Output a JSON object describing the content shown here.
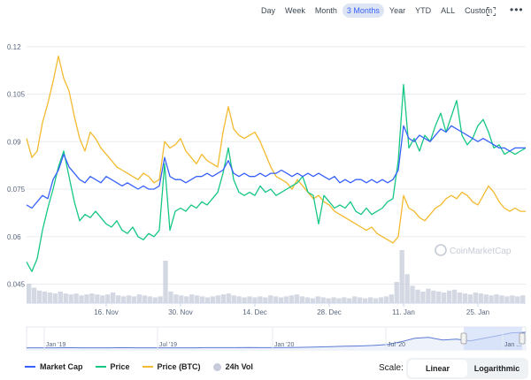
{
  "range_buttons": [
    "Day",
    "Week",
    "Month",
    "3 Months",
    "Year",
    "YTD",
    "ALL",
    "Custom"
  ],
  "active_range": "3 Months",
  "watermark": "CoinMarketCap",
  "legend": [
    {
      "label": "Market Cap",
      "color": "#3861fb",
      "kind": "line"
    },
    {
      "label": "Price",
      "color": "#16c784",
      "kind": "line"
    },
    {
      "label": "Price (BTC)",
      "color": "#f3ba2f",
      "kind": "line"
    },
    {
      "label": "24h Vol",
      "color": "#c5cbd9",
      "kind": "dot"
    }
  ],
  "scale": {
    "label": "Scale:",
    "options": [
      "Linear",
      "Logarithmic"
    ],
    "active": "Linear"
  },
  "colors": {
    "market_cap": "#3861fb",
    "price": "#16c784",
    "price_btc": "#f3ba2f",
    "volume": "#c5cbd9",
    "navigator_fill": "#c9d7f8"
  },
  "chart_data": {
    "type": "line",
    "y_ticks": [
      0.045,
      0.06,
      0.075,
      0.09,
      0.105,
      0.12
    ],
    "ylim": [
      0.039,
      0.123
    ],
    "x_ticks": [
      "16. Nov",
      "30. Nov",
      "14. Dec",
      "28. Dec",
      "11. Jan",
      "25. Jan"
    ],
    "x_tick_days": [
      16,
      30,
      44,
      58,
      72,
      86
    ],
    "xlim_days": [
      1,
      95
    ],
    "grid": true,
    "legend_position": "bottom",
    "series": [
      {
        "name": "Market Cap",
        "key": "market_cap",
        "points": [
          [
            1,
            0.07
          ],
          [
            2,
            0.069
          ],
          [
            3,
            0.071
          ],
          [
            4,
            0.073
          ],
          [
            5,
            0.072
          ],
          [
            6,
            0.078
          ],
          [
            7,
            0.081
          ],
          [
            8,
            0.086
          ],
          [
            9,
            0.082
          ],
          [
            10,
            0.08
          ],
          [
            11,
            0.078
          ],
          [
            12,
            0.077
          ],
          [
            13,
            0.079
          ],
          [
            14,
            0.078
          ],
          [
            15,
            0.077
          ],
          [
            16,
            0.079
          ],
          [
            17,
            0.078
          ],
          [
            18,
            0.077
          ],
          [
            19,
            0.076
          ],
          [
            20,
            0.077
          ],
          [
            21,
            0.076
          ],
          [
            22,
            0.075
          ],
          [
            23,
            0.076
          ],
          [
            24,
            0.075
          ],
          [
            25,
            0.075
          ],
          [
            26,
            0.076
          ],
          [
            27,
            0.085
          ],
          [
            28,
            0.079
          ],
          [
            29,
            0.078
          ],
          [
            30,
            0.078
          ],
          [
            31,
            0.077
          ],
          [
            32,
            0.078
          ],
          [
            33,
            0.079
          ],
          [
            34,
            0.079
          ],
          [
            35,
            0.08
          ],
          [
            36,
            0.079
          ],
          [
            37,
            0.08
          ],
          [
            38,
            0.081
          ],
          [
            39,
            0.084
          ],
          [
            40,
            0.08
          ],
          [
            41,
            0.079
          ],
          [
            42,
            0.08
          ],
          [
            43,
            0.079
          ],
          [
            44,
            0.079
          ],
          [
            45,
            0.08
          ],
          [
            46,
            0.079
          ],
          [
            47,
            0.08
          ],
          [
            48,
            0.08
          ],
          [
            49,
            0.081
          ],
          [
            50,
            0.08
          ],
          [
            51,
            0.079
          ],
          [
            52,
            0.08
          ],
          [
            53,
            0.079
          ],
          [
            54,
            0.08
          ],
          [
            55,
            0.079
          ],
          [
            56,
            0.08
          ],
          [
            57,
            0.079
          ],
          [
            58,
            0.078
          ],
          [
            59,
            0.079
          ],
          [
            60,
            0.077
          ],
          [
            61,
            0.078
          ],
          [
            62,
            0.077
          ],
          [
            63,
            0.078
          ],
          [
            64,
            0.078
          ],
          [
            65,
            0.077
          ],
          [
            66,
            0.078
          ],
          [
            67,
            0.077
          ],
          [
            68,
            0.078
          ],
          [
            69,
            0.077
          ],
          [
            70,
            0.078
          ],
          [
            71,
            0.081
          ],
          [
            72,
            0.095
          ],
          [
            73,
            0.091
          ],
          [
            74,
            0.09
          ],
          [
            75,
            0.092
          ],
          [
            76,
            0.091
          ],
          [
            77,
            0.09
          ],
          [
            78,
            0.092
          ],
          [
            79,
            0.094
          ],
          [
            80,
            0.093
          ],
          [
            81,
            0.095
          ],
          [
            82,
            0.094
          ],
          [
            83,
            0.093
          ],
          [
            84,
            0.092
          ],
          [
            85,
            0.091
          ],
          [
            86,
            0.09
          ],
          [
            87,
            0.091
          ],
          [
            88,
            0.09
          ],
          [
            89,
            0.089
          ],
          [
            90,
            0.088
          ],
          [
            91,
            0.088
          ],
          [
            92,
            0.087
          ],
          [
            93,
            0.088
          ],
          [
            94,
            0.088
          ],
          [
            95,
            0.088
          ]
        ]
      },
      {
        "name": "Price",
        "key": "price",
        "points": [
          [
            1,
            0.052
          ],
          [
            2,
            0.049
          ],
          [
            3,
            0.053
          ],
          [
            4,
            0.062
          ],
          [
            5,
            0.069
          ],
          [
            6,
            0.075
          ],
          [
            7,
            0.082
          ],
          [
            8,
            0.087
          ],
          [
            9,
            0.079
          ],
          [
            10,
            0.071
          ],
          [
            11,
            0.065
          ],
          [
            12,
            0.067
          ],
          [
            13,
            0.066
          ],
          [
            14,
            0.068
          ],
          [
            15,
            0.066
          ],
          [
            16,
            0.064
          ],
          [
            17,
            0.063
          ],
          [
            18,
            0.065
          ],
          [
            19,
            0.062
          ],
          [
            20,
            0.061
          ],
          [
            21,
            0.063
          ],
          [
            22,
            0.06
          ],
          [
            23,
            0.059
          ],
          [
            24,
            0.061
          ],
          [
            25,
            0.06
          ],
          [
            26,
            0.062
          ],
          [
            27,
            0.083
          ],
          [
            28,
            0.062
          ],
          [
            29,
            0.068
          ],
          [
            30,
            0.069
          ],
          [
            31,
            0.068
          ],
          [
            32,
            0.07
          ],
          [
            33,
            0.069
          ],
          [
            34,
            0.071
          ],
          [
            35,
            0.07
          ],
          [
            36,
            0.072
          ],
          [
            37,
            0.074
          ],
          [
            38,
            0.08
          ],
          [
            39,
            0.088
          ],
          [
            40,
            0.078
          ],
          [
            41,
            0.074
          ],
          [
            42,
            0.073
          ],
          [
            43,
            0.074
          ],
          [
            44,
            0.073
          ],
          [
            45,
            0.076
          ],
          [
            46,
            0.074
          ],
          [
            47,
            0.075
          ],
          [
            48,
            0.073
          ],
          [
            49,
            0.074
          ],
          [
            50,
            0.075
          ],
          [
            51,
            0.076
          ],
          [
            52,
            0.077
          ],
          [
            53,
            0.079
          ],
          [
            54,
            0.074
          ],
          [
            55,
            0.073
          ],
          [
            56,
            0.064
          ],
          [
            57,
            0.073
          ],
          [
            58,
            0.071
          ],
          [
            59,
            0.069
          ],
          [
            60,
            0.07
          ],
          [
            61,
            0.069
          ],
          [
            62,
            0.071
          ],
          [
            63,
            0.068
          ],
          [
            64,
            0.067
          ],
          [
            65,
            0.069
          ],
          [
            66,
            0.067
          ],
          [
            67,
            0.068
          ],
          [
            68,
            0.069
          ],
          [
            69,
            0.071
          ],
          [
            70,
            0.072
          ],
          [
            71,
            0.084
          ],
          [
            72,
            0.108
          ],
          [
            73,
            0.088
          ],
          [
            74,
            0.091
          ],
          [
            75,
            0.087
          ],
          [
            76,
            0.092
          ],
          [
            77,
            0.09
          ],
          [
            78,
            0.095
          ],
          [
            79,
            0.099
          ],
          [
            80,
            0.093
          ],
          [
            81,
            0.098
          ],
          [
            82,
            0.103
          ],
          [
            83,
            0.092
          ],
          [
            84,
            0.089
          ],
          [
            85,
            0.091
          ],
          [
            86,
            0.095
          ],
          [
            87,
            0.097
          ],
          [
            88,
            0.093
          ],
          [
            89,
            0.088
          ],
          [
            90,
            0.089
          ],
          [
            91,
            0.086
          ],
          [
            92,
            0.087
          ],
          [
            93,
            0.086
          ],
          [
            94,
            0.087
          ],
          [
            95,
            0.088
          ]
        ]
      },
      {
        "name": "Price (BTC)",
        "key": "price_btc",
        "points": [
          [
            1,
            0.091
          ],
          [
            2,
            0.085
          ],
          [
            3,
            0.087
          ],
          [
            4,
            0.096
          ],
          [
            5,
            0.102
          ],
          [
            6,
            0.109
          ],
          [
            7,
            0.117
          ],
          [
            8,
            0.11
          ],
          [
            9,
            0.106
          ],
          [
            10,
            0.098
          ],
          [
            11,
            0.091
          ],
          [
            12,
            0.087
          ],
          [
            13,
            0.093
          ],
          [
            14,
            0.091
          ],
          [
            15,
            0.088
          ],
          [
            16,
            0.086
          ],
          [
            17,
            0.084
          ],
          [
            18,
            0.082
          ],
          [
            19,
            0.081
          ],
          [
            20,
            0.08
          ],
          [
            21,
            0.079
          ],
          [
            22,
            0.078
          ],
          [
            23,
            0.08
          ],
          [
            24,
            0.079
          ],
          [
            25,
            0.077
          ],
          [
            26,
            0.078
          ],
          [
            27,
            0.09
          ],
          [
            28,
            0.088
          ],
          [
            29,
            0.089
          ],
          [
            30,
            0.091
          ],
          [
            31,
            0.087
          ],
          [
            32,
            0.085
          ],
          [
            33,
            0.083
          ],
          [
            34,
            0.086
          ],
          [
            35,
            0.084
          ],
          [
            36,
            0.083
          ],
          [
            37,
            0.082
          ],
          [
            38,
            0.093
          ],
          [
            39,
            0.101
          ],
          [
            40,
            0.094
          ],
          [
            41,
            0.092
          ],
          [
            42,
            0.091
          ],
          [
            43,
            0.092
          ],
          [
            44,
            0.093
          ],
          [
            45,
            0.09
          ],
          [
            46,
            0.086
          ],
          [
            47,
            0.082
          ],
          [
            48,
            0.079
          ],
          [
            49,
            0.078
          ],
          [
            50,
            0.077
          ],
          [
            51,
            0.075
          ],
          [
            52,
            0.078
          ],
          [
            53,
            0.076
          ],
          [
            54,
            0.074
          ],
          [
            55,
            0.072
          ],
          [
            56,
            0.073
          ],
          [
            57,
            0.071
          ],
          [
            58,
            0.07
          ],
          [
            59,
            0.068
          ],
          [
            60,
            0.067
          ],
          [
            61,
            0.066
          ],
          [
            62,
            0.065
          ],
          [
            63,
            0.064
          ],
          [
            64,
            0.063
          ],
          [
            65,
            0.062
          ],
          [
            66,
            0.063
          ],
          [
            67,
            0.061
          ],
          [
            68,
            0.06
          ],
          [
            69,
            0.059
          ],
          [
            70,
            0.058
          ],
          [
            71,
            0.06
          ],
          [
            72,
            0.073
          ],
          [
            73,
            0.069
          ],
          [
            74,
            0.068
          ],
          [
            75,
            0.066
          ],
          [
            76,
            0.065
          ],
          [
            77,
            0.067
          ],
          [
            78,
            0.069
          ],
          [
            79,
            0.07
          ],
          [
            80,
            0.072
          ],
          [
            81,
            0.073
          ],
          [
            82,
            0.072
          ],
          [
            83,
            0.074
          ],
          [
            84,
            0.073
          ],
          [
            85,
            0.071
          ],
          [
            86,
            0.07
          ],
          [
            87,
            0.073
          ],
          [
            88,
            0.076
          ],
          [
            89,
            0.074
          ],
          [
            90,
            0.071
          ],
          [
            91,
            0.069
          ],
          [
            92,
            0.068
          ],
          [
            93,
            0.069
          ],
          [
            94,
            0.068
          ],
          [
            95,
            0.068
          ]
        ]
      }
    ],
    "volume": [
      20,
      16,
      13,
      12,
      11,
      10,
      12,
      10,
      9,
      10,
      8,
      9,
      10,
      9,
      8,
      9,
      11,
      8,
      7,
      8,
      7,
      9,
      8,
      7,
      6,
      7,
      44,
      12,
      9,
      8,
      7,
      9,
      8,
      7,
      6,
      7,
      8,
      9,
      10,
      8,
      7,
      6,
      7,
      6,
      7,
      6,
      8,
      7,
      6,
      7,
      8,
      9,
      7,
      6,
      5,
      7,
      6,
      5,
      6,
      5,
      6,
      5,
      7,
      6,
      5,
      6,
      5,
      6,
      7,
      9,
      22,
      55,
      30,
      18,
      14,
      12,
      15,
      13,
      12,
      11,
      13,
      14,
      11,
      10,
      9,
      11,
      10,
      9,
      8,
      9,
      8,
      7,
      8,
      7,
      8
    ]
  },
  "navigator": {
    "x_labels": [
      "Jan '19",
      "Jul '19",
      "Jan '20",
      "Jul '20",
      "Jan ..."
    ],
    "history": [
      0.002,
      0.002,
      0.002,
      0.003,
      0.002,
      0.002,
      0.002,
      0.003,
      0.002,
      0.002,
      0.002,
      0.002,
      0.002,
      0.003,
      0.003,
      0.003,
      0.004,
      0.003,
      0.003,
      0.004,
      0.005,
      0.007,
      0.009,
      0.011,
      0.012,
      0.015,
      0.02,
      0.035,
      0.055,
      0.06,
      0.045,
      0.05,
      0.04,
      0.055,
      0.07,
      0.085,
      0.088
    ]
  }
}
